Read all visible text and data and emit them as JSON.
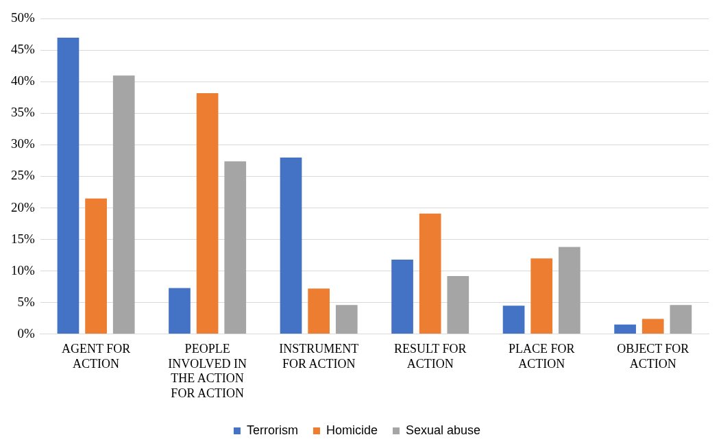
{
  "chart_data": {
    "type": "bar",
    "categories": [
      "AGENT FOR ACTION",
      "PEOPLE INVOLVED IN THE ACTION FOR ACTION",
      "INSTRUMENT FOR ACTION",
      "RESULT FOR ACTION",
      "PLACE FOR ACTION",
      "OBJECT FOR ACTION"
    ],
    "series": [
      {
        "name": "Terrorism",
        "color": "#4472c4",
        "values": [
          47,
          7.3,
          28,
          11.8,
          4.5,
          1.5
        ]
      },
      {
        "name": "Homicide",
        "color": "#ed7d31",
        "values": [
          21.5,
          38.2,
          7.2,
          19.1,
          12,
          2.4
        ]
      },
      {
        "name": "Sexual abuse",
        "color": "#a5a5a5",
        "values": [
          41,
          27.4,
          4.6,
          9.2,
          13.8,
          4.6
        ]
      }
    ],
    "ylim": [
      0,
      50
    ],
    "yticks": [
      {
        "value": 0,
        "label": "0%"
      },
      {
        "value": 5,
        "label": "5%"
      },
      {
        "value": 10,
        "label": "10%"
      },
      {
        "value": 15,
        "label": "15%"
      },
      {
        "value": 20,
        "label": "20%"
      },
      {
        "value": 25,
        "label": "25%"
      },
      {
        "value": 30,
        "label": "30%"
      },
      {
        "value": 35,
        "label": "35%"
      },
      {
        "value": 40,
        "label": "40%"
      },
      {
        "value": 45,
        "label": "45%"
      },
      {
        "value": 50,
        "label": "50%"
      }
    ],
    "grid": "y",
    "legend": "bottom"
  }
}
